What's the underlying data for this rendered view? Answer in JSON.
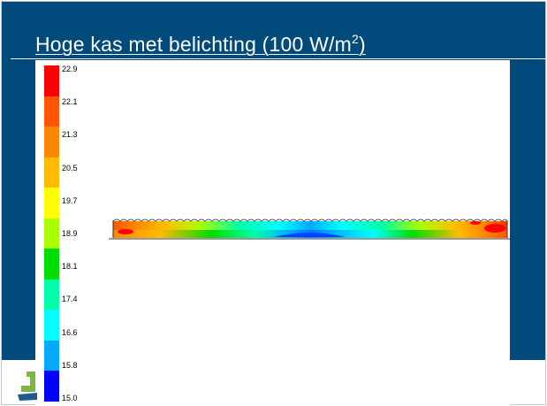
{
  "slide": {
    "title_main": "Hoge kas met belichting (100 W/m",
    "title_sup": "2",
    "title_close": ")"
  },
  "legend": {
    "labels": [
      "22.9",
      "22.1",
      "21.3",
      "20.5",
      "19.7",
      "18.9",
      "18.1",
      "17.4",
      "16.6",
      "15.8",
      "15.0"
    ],
    "colors": [
      "#ff0000",
      "#ff5500",
      "#ff8800",
      "#ffbb00",
      "#ffff00",
      "#aaff00",
      "#00dd00",
      "#00ffaa",
      "#00ffff",
      "#00aaff",
      "#0000ff"
    ]
  },
  "colors": {
    "background_blue": "#004a7c",
    "panel": "#ffffff"
  }
}
